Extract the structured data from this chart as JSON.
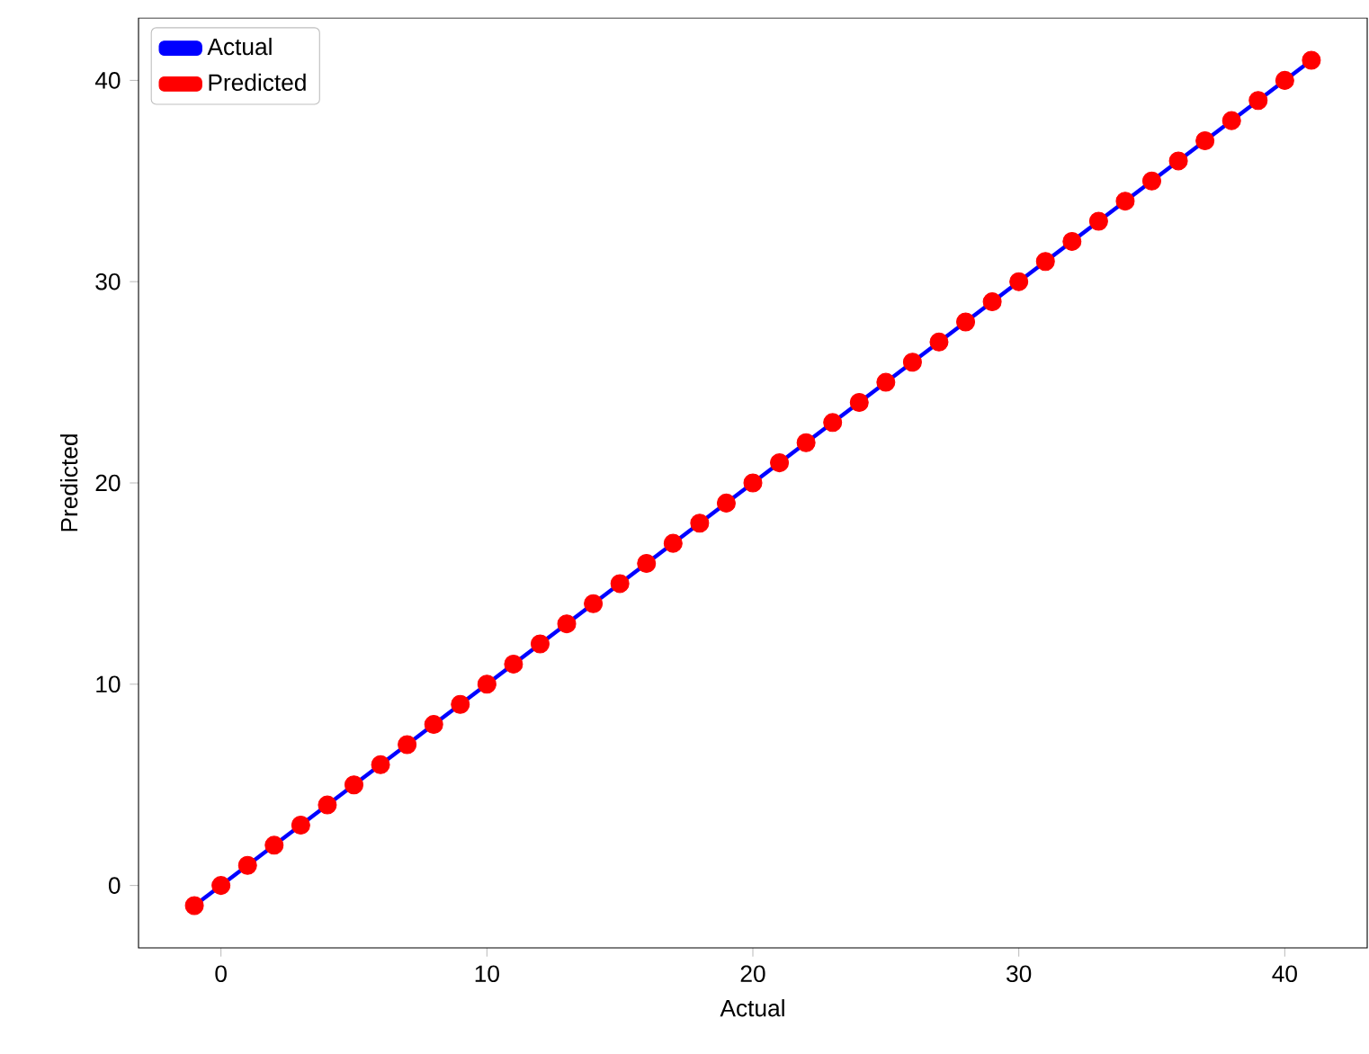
{
  "chart_data": {
    "type": "scatter",
    "xlabel": "Actual",
    "ylabel": "Predicted",
    "xlim": [
      -3.1,
      43.1
    ],
    "ylim": [
      -3.1,
      43.1
    ],
    "xticks": [
      0,
      10,
      20,
      30,
      40
    ],
    "yticks": [
      0,
      10,
      20,
      30,
      40
    ],
    "legend": "top left",
    "grid": false,
    "series": [
      {
        "name": "Actual",
        "type": "line",
        "line_style": "solid",
        "marker": "none",
        "color": "#0000ff",
        "x": [
          -1,
          41
        ],
        "values": [
          -1,
          41
        ]
      },
      {
        "name": "Predicted",
        "marker": "circle",
        "color": "#ff0000",
        "x": [
          -1,
          0,
          1,
          2,
          3,
          4,
          5,
          6,
          7,
          8,
          9,
          10,
          11,
          12,
          13,
          14,
          15,
          16,
          17,
          18,
          19,
          20,
          21,
          22,
          23,
          24,
          25,
          26,
          27,
          28,
          29,
          30,
          31,
          32,
          33,
          34,
          35,
          36,
          37,
          38,
          39,
          40,
          41
        ],
        "values": [
          -1,
          0,
          1,
          2,
          3,
          4,
          5,
          6,
          7,
          8,
          9,
          10,
          11,
          12,
          13,
          14,
          15,
          16,
          17,
          18,
          19,
          20,
          21,
          22,
          23,
          24,
          25,
          26,
          27,
          28,
          29,
          30,
          31,
          32,
          33,
          34,
          35,
          36,
          37,
          38,
          39,
          40,
          41
        ]
      }
    ]
  }
}
